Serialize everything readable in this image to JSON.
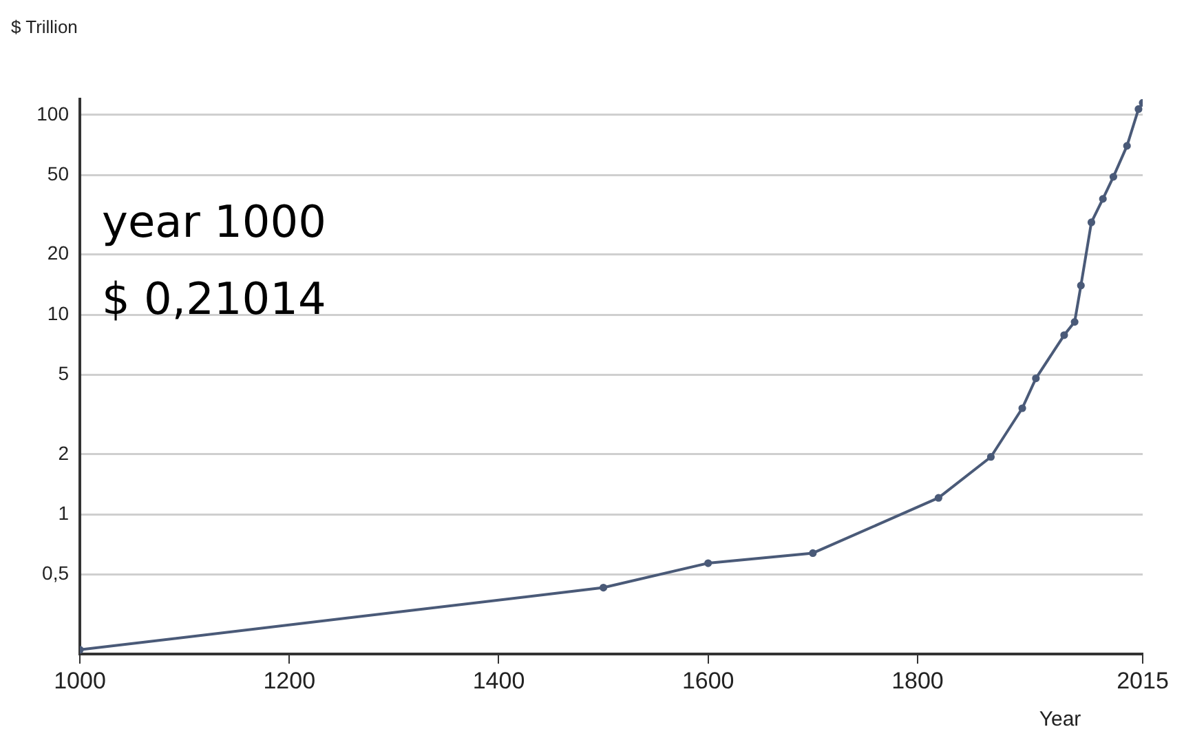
{
  "chart_data": {
    "type": "line",
    "ylabel": "$ Trillion",
    "xlabel": "Year",
    "annotations": [
      "year 1000",
      "$ 0,21014"
    ],
    "x": [
      1000,
      1500,
      1600,
      1700,
      1820,
      1870,
      1900,
      1913,
      1940,
      1950,
      1956,
      1966,
      1977,
      1987,
      2000,
      2011,
      2015
    ],
    "series": [
      {
        "color": "#4a5a78",
        "values": [
          0.21014,
          0.43,
          0.57,
          0.64,
          1.21,
          1.94,
          3.4,
          4.8,
          7.9,
          9.2,
          14,
          29,
          38,
          49,
          70,
          107,
          115
        ]
      }
    ],
    "xlim": [
      1000,
      2015
    ],
    "xticks": [
      1000,
      1200,
      1400,
      1600,
      1800,
      2015
    ],
    "ylim": [
      0.2,
      120
    ],
    "yticks": [
      {
        "value": 0.5,
        "label": "0,5"
      },
      1,
      2,
      5,
      10,
      20,
      50,
      100
    ],
    "log": "y",
    "grid": "y",
    "marker": "circle",
    "line_style": "solid",
    "legend": false
  }
}
